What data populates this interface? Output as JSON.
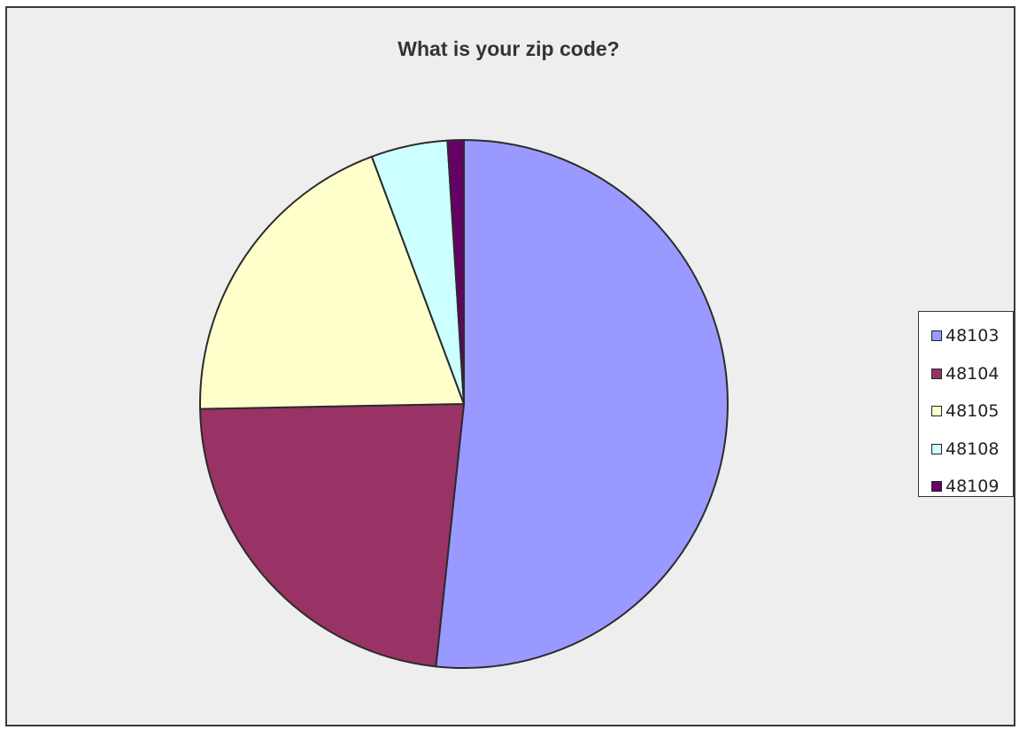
{
  "chart_data": {
    "type": "pie",
    "title": "What is your zip code?",
    "categories": [
      "48103",
      "48104",
      "48105",
      "48108",
      "48109"
    ],
    "values": [
      51.9,
      23.1,
      19.7,
      4.7,
      1.0
    ],
    "colors": [
      "#9999ff",
      "#993366",
      "#ffffcc",
      "#ccffff",
      "#660066"
    ],
    "legend_position": "right",
    "start_angle_deg": 0,
    "direction": "clockwise"
  }
}
